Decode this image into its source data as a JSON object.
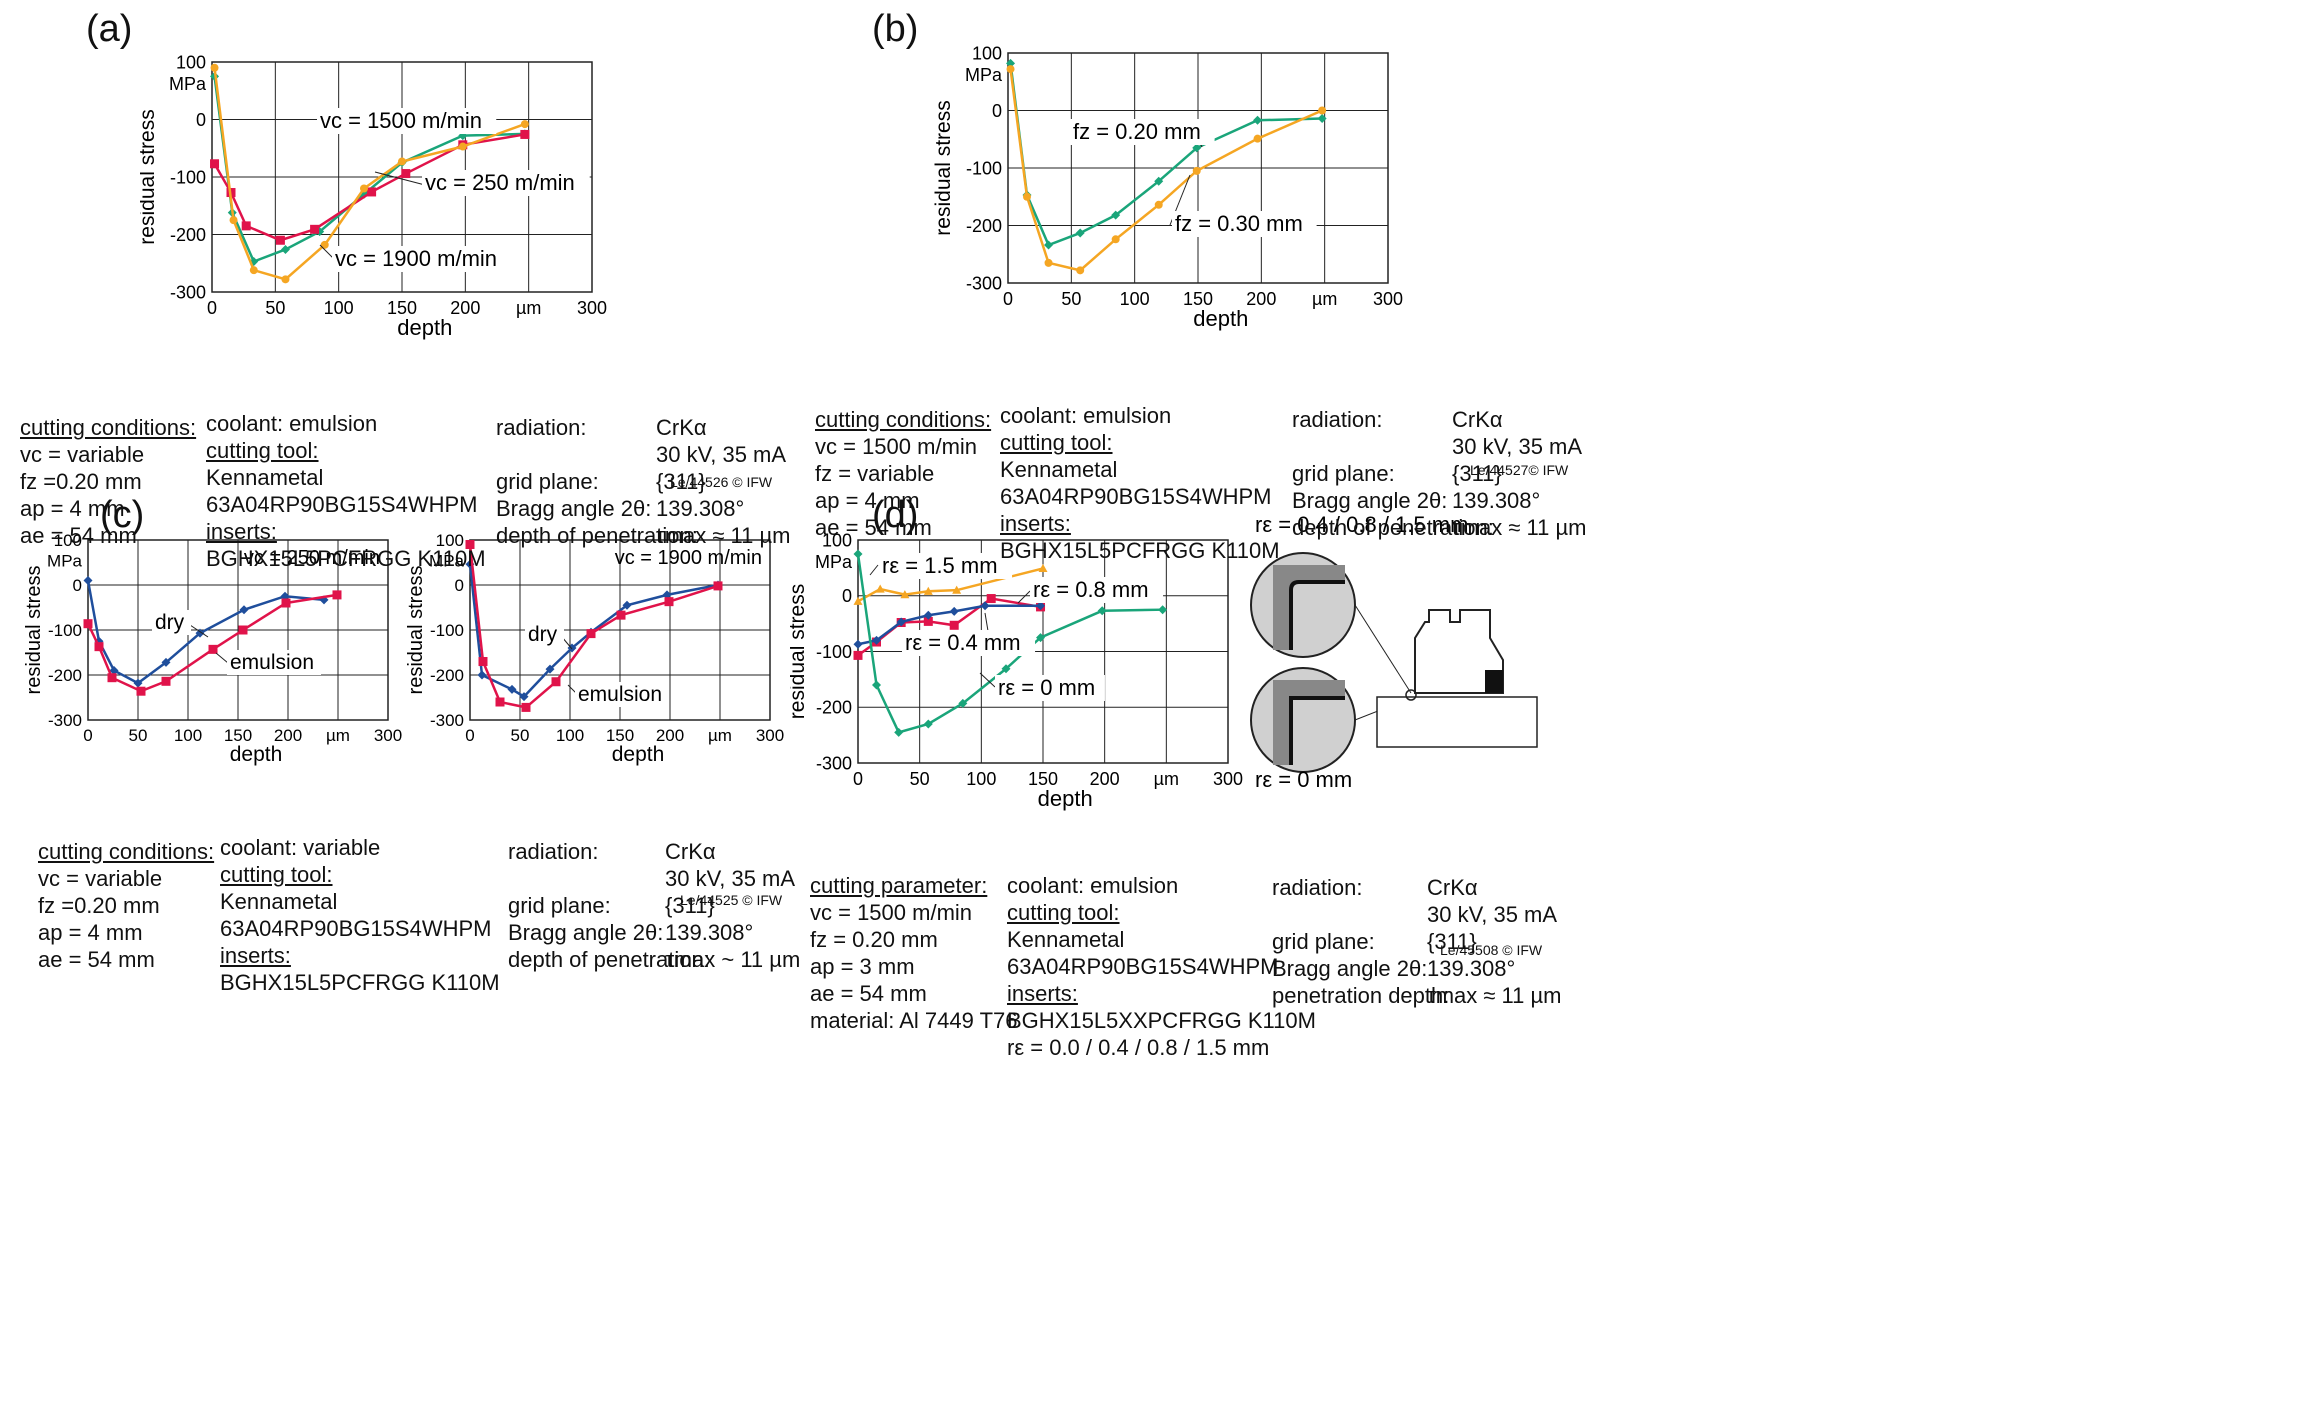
{
  "panels": [
    {
      "letter": "(a)",
      "note": "Le/44526 © IFW",
      "left_col": [
        "cutting conditions:",
        "vc = variable",
        "fz =0.20 mm",
        "ap = 4 mm",
        "ae = 54 mm"
      ],
      "mid_col": [
        "coolant: emulsion",
        "cutting tool:",
        "Kennametal",
        "63A04RP90BG15S4WHPM",
        "inserts:",
        "BGHX15L5PCFRGG K110M"
      ],
      "rad_labels": [
        "radiation:",
        "",
        "grid plane:",
        "Bragg angle 2θ:",
        "depth of penetration:"
      ],
      "rad_values": [
        "CrKα",
        "30 kV, 35 mA",
        "{311}",
        "139.308°",
        "τmax ≈ 11 µm"
      ]
    },
    {
      "letter": "(b)",
      "note": "Le/44527© IFW",
      "left_col": [
        "cutting conditions:",
        "vc = 1500 m/min",
        "fz = variable",
        "ap = 4 mm",
        "ae = 54 mm"
      ],
      "mid_col": [
        "coolant: emulsion",
        "cutting tool:",
        "Kennametal",
        "63A04RP90BG15S4WHPM",
        "inserts:",
        "BGHX15L5PCFRGG K110M"
      ],
      "rad_labels": [
        "radiation:",
        "",
        "grid plane:",
        "Bragg angle 2θ:",
        "depth of penetration:"
      ],
      "rad_values": [
        "CrKα",
        "30 kV, 35 mA",
        "{311}",
        "139.308°",
        "τmax ≈ 11 µm"
      ]
    },
    {
      "letter": "(c)",
      "note": "Le/44525 © IFW",
      "left_col": [
        "cutting conditions:",
        "vc = variable",
        "fz =0.20 mm",
        "ap = 4 mm",
        "ae = 54 mm"
      ],
      "mid_col": [
        "coolant: variable",
        "cutting tool:",
        "Kennametal",
        "63A04RP90BG15S4WHPM",
        "inserts:",
        "BGHX15L5PCFRGG K110M"
      ],
      "rad_labels": [
        "radiation:",
        "",
        "grid plane:",
        "Bragg angle 2θ:",
        "depth of penetration:"
      ],
      "rad_values": [
        "CrKα",
        "30 kV, 35 mA",
        "{311}",
        "139.308°",
        "τmax ~ 11 µm"
      ]
    },
    {
      "letter": "(d)",
      "note": "Le/45508 © IFW",
      "left_col": [
        "cutting parameter:",
        "vc = 1500 m/min",
        "fz = 0.20 mm",
        "ap = 3 mm",
        "ae = 54 mm",
        "material: Al 7449 T76"
      ],
      "mid_col": [
        "coolant: emulsion",
        "cutting tool:",
        "Kennametal",
        "63A04RP90BG15S4WHPM",
        "inserts:",
        "BGHX15L5XXPCFRGG K110M",
        "rε = 0.0 / 0.4 / 0.8 / 1.5 mm"
      ],
      "rad_labels": [
        "radiation:",
        "",
        "grid plane:",
        "Bragg angle 2θ:",
        "penetration depth:"
      ],
      "rad_values": [
        "CrKα",
        "30 kV, 35 mA",
        "{311}",
        "139.308°",
        "τmax ≈ 11 µm"
      ],
      "schematic": {
        "top_label": "rε = 0.4 / 0.8 / 1.5 mm",
        "bottom_label": "rε = 0 mm"
      }
    }
  ],
  "colors": {
    "green": "#1aa57a",
    "orange": "#f5a623",
    "red": "#e0134a",
    "blue": "#1f4e9c"
  },
  "chart_data": [
    {
      "id": "a",
      "type": "line",
      "xlabel": "depth",
      "ylabel": "residual stress",
      "yunit": "MPa",
      "xlim": [
        0,
        300
      ],
      "ylim": [
        -300,
        100
      ],
      "xticks": [
        "0",
        "50",
        "100",
        "150",
        "200",
        "µm",
        "300"
      ],
      "yticks": [
        "100",
        "0",
        "-100",
        "-200",
        "-300"
      ],
      "series": [
        {
          "name": "vc = 1500 m/min",
          "color": "green",
          "marker": "diamond",
          "x": [
            2,
            16,
            33,
            58,
            85,
            120,
            150,
            198,
            247
          ],
          "y": [
            75,
            -162,
            -247,
            -226,
            -195,
            -130,
            -75,
            -28,
            -25
          ]
        },
        {
          "name": "vc = 250 m/min",
          "color": "red",
          "marker": "square",
          "x": [
            2,
            15,
            27,
            54,
            81,
            126,
            153,
            198,
            247
          ],
          "y": [
            -77,
            -127,
            -185,
            -210,
            -191,
            -126,
            -94,
            -44,
            -26
          ]
        },
        {
          "name": "vc = 1900 m/min",
          "color": "orange",
          "marker": "circle",
          "x": [
            2,
            17,
            33,
            58,
            89,
            120,
            150,
            198,
            247
          ],
          "y": [
            90,
            -175,
            -262,
            -278,
            -218,
            -120,
            -73,
            -47,
            -8
          ]
        }
      ]
    },
    {
      "id": "b",
      "type": "line",
      "xlabel": "depth",
      "ylabel": "residual stress",
      "yunit": "MPa",
      "xlim": [
        0,
        300
      ],
      "ylim": [
        -300,
        100
      ],
      "xticks": [
        "0",
        "50",
        "100",
        "150",
        "200",
        "µm",
        "300"
      ],
      "yticks": [
        "100",
        "0",
        "-100",
        "-200",
        "-300"
      ],
      "series": [
        {
          "name": "fz = 0.20 mm",
          "color": "green",
          "marker": "diamond",
          "x": [
            2,
            15,
            32,
            57,
            85,
            119,
            149,
            197,
            248
          ],
          "y": [
            82,
            -147,
            -234,
            -213,
            -182,
            -123,
            -65,
            -17,
            -14
          ]
        },
        {
          "name": "fz = 0.30 mm",
          "color": "orange",
          "marker": "circle",
          "x": [
            2,
            15,
            32,
            57,
            85,
            119,
            149,
            197,
            248
          ],
          "y": [
            72,
            -150,
            -265,
            -278,
            -224,
            -164,
            -105,
            -49,
            0
          ]
        }
      ]
    },
    {
      "id": "c1",
      "type": "line",
      "title": "vc = 250 m/min",
      "xlabel": "depth",
      "ylabel": "residual stress",
      "yunit": "MPa",
      "xlim": [
        0,
        300
      ],
      "ylim": [
        -300,
        100
      ],
      "xticks": [
        "0",
        "50",
        "100",
        "150",
        "200",
        "µm",
        "300"
      ],
      "yticks": [
        "100",
        "0",
        "-100",
        "-200",
        "-300"
      ],
      "series": [
        {
          "name": "dry",
          "color": "blue",
          "marker": "diamond",
          "x": [
            0,
            11,
            26,
            50,
            78,
            112,
            156,
            197,
            236
          ],
          "y": [
            10,
            -125,
            -190,
            -218,
            -172,
            -107,
            -55,
            -25,
            -33
          ]
        },
        {
          "name": "emulsion",
          "color": "red",
          "marker": "square",
          "x": [
            0,
            11,
            24,
            53,
            78,
            125,
            155,
            198,
            249
          ],
          "y": [
            -86,
            -137,
            -206,
            -236,
            -214,
            -143,
            -100,
            -40,
            -22
          ]
        }
      ]
    },
    {
      "id": "c2",
      "type": "line",
      "title": "vc = 1900 m/min",
      "xlabel": "depth",
      "ylabel": "residual stress",
      "yunit": "MPa",
      "xlim": [
        0,
        300
      ],
      "ylim": [
        -300,
        100
      ],
      "xticks": [
        "0",
        "50",
        "100",
        "150",
        "200",
        "µm",
        "300"
      ],
      "yticks": [
        "100",
        "0",
        "-100",
        "-200",
        "-300"
      ],
      "series": [
        {
          "name": "dry",
          "color": "blue",
          "marker": "diamond",
          "x": [
            0,
            12,
            42,
            54,
            80,
            102,
            121,
            157,
            197,
            248
          ],
          "y": [
            46,
            -200,
            -232,
            -248,
            -187,
            -140,
            -105,
            -45,
            -22,
            0
          ]
        },
        {
          "name": "emulsion",
          "color": "red",
          "marker": "square",
          "x": [
            0,
            13,
            30,
            56,
            86,
            121,
            151,
            199,
            248
          ],
          "y": [
            90,
            -170,
            -260,
            -272,
            -215,
            -108,
            -67,
            -37,
            -2
          ]
        }
      ]
    },
    {
      "id": "d",
      "type": "line",
      "xlabel": "depth",
      "ylabel": "residual stress",
      "yunit": "MPa",
      "xlim": [
        0,
        300
      ],
      "ylim": [
        -300,
        100
      ],
      "xticks": [
        "0",
        "50",
        "100",
        "150",
        "200",
        "µm",
        "300"
      ],
      "yticks": [
        "100",
        "0",
        "-100",
        "-200",
        "-300"
      ],
      "series": [
        {
          "name": "rε = 1.5 mm",
          "color": "orange",
          "marker": "triangle",
          "x": [
            0,
            18,
            38,
            57,
            80,
            150
          ],
          "y": [
            -10,
            12,
            2,
            8,
            10,
            49
          ]
        },
        {
          "name": "rε = 0.8 mm",
          "color": "red",
          "marker": "square",
          "x": [
            0,
            15,
            35,
            57,
            78,
            108,
            148
          ],
          "y": [
            -107,
            -83,
            -48,
            -46,
            -53,
            -5,
            -20
          ]
        },
        {
          "name": "rε = 0.4 mm",
          "color": "blue",
          "marker": "diamond",
          "x": [
            0,
            15,
            35,
            57,
            78,
            103,
            148
          ],
          "y": [
            -87,
            -80,
            -47,
            -35,
            -28,
            -18,
            -18
          ]
        },
        {
          "name": "rε = 0 mm",
          "color": "green",
          "marker": "diamond",
          "x": [
            0,
            15,
            33,
            57,
            85,
            120,
            148,
            198,
            247
          ],
          "y": [
            75,
            -160,
            -245,
            -230,
            -193,
            -131,
            -75,
            -27,
            -25
          ]
        }
      ]
    }
  ]
}
